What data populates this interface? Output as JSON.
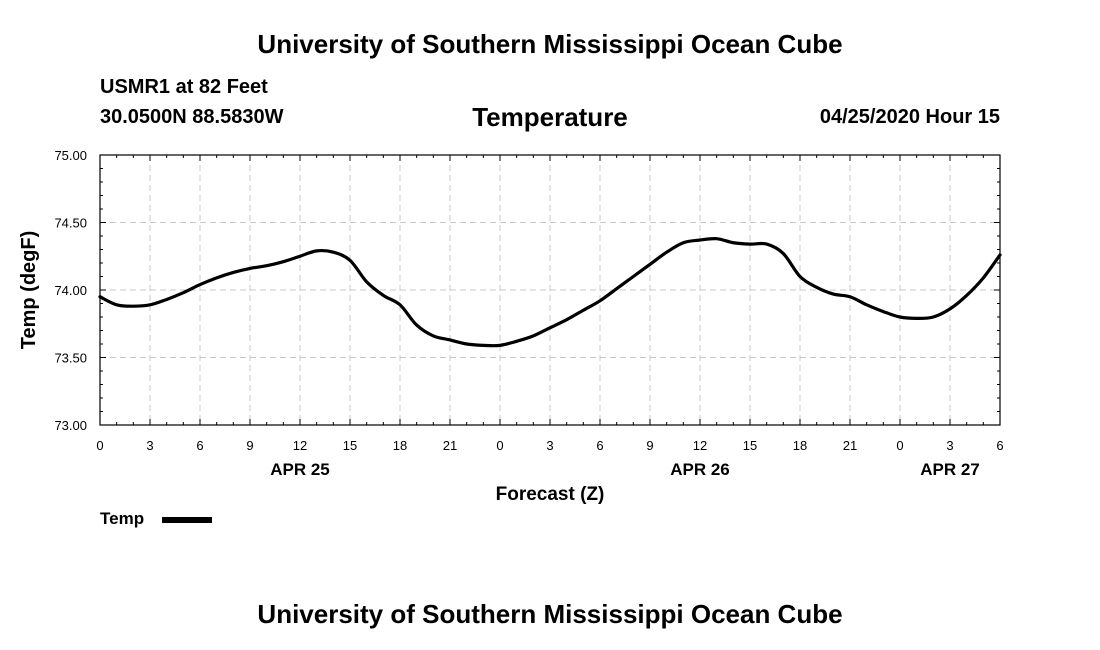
{
  "header": {
    "top_title": "University of Southern Mississippi Ocean Cube",
    "station": "USMR1 at 82 Feet",
    "coords": "30.0500N 88.5830W",
    "valid_time": "04/25/2020 Hour 15"
  },
  "footer": {
    "bottom_title": "University of Southern Mississippi Ocean Cube"
  },
  "legend": {
    "label": "Temp",
    "color": "#000000"
  },
  "chart_data": {
    "type": "line",
    "title": "Temperature",
    "xlabel": "Forecast (Z)",
    "ylabel": "Temp (degF)",
    "xlim": [
      0,
      54
    ],
    "ylim": [
      73.0,
      75.0
    ],
    "grid": true,
    "yticks": [
      73.0,
      73.5,
      74.0,
      74.5,
      75.0
    ],
    "ytick_labels": [
      "73.00",
      "73.50",
      "74.00",
      "74.50",
      "75.00"
    ],
    "xticks": [
      0,
      3,
      6,
      9,
      12,
      15,
      18,
      21,
      24,
      27,
      30,
      33,
      36,
      39,
      42,
      45,
      48,
      51,
      54
    ],
    "xtick_labels": [
      "0",
      "3",
      "6",
      "9",
      "12",
      "15",
      "18",
      "21",
      "0",
      "3",
      "6",
      "9",
      "12",
      "15",
      "18",
      "21",
      "0",
      "3",
      "6"
    ],
    "date_labels": [
      {
        "x": 12,
        "label": "APR 25"
      },
      {
        "x": 36,
        "label": "APR 26"
      },
      {
        "x": 51,
        "label": "APR 27"
      }
    ],
    "series": [
      {
        "name": "Temp",
        "color": "#000000",
        "x": [
          0,
          1,
          2,
          3,
          4,
          5,
          6,
          7,
          8,
          9,
          10,
          11,
          12,
          13,
          14,
          15,
          16,
          17,
          18,
          19,
          20,
          21,
          22,
          23,
          24,
          25,
          26,
          27,
          28,
          29,
          30,
          31,
          32,
          33,
          34,
          35,
          36,
          37,
          38,
          39,
          40,
          41,
          42,
          43,
          44,
          45,
          46,
          47,
          48,
          49,
          50,
          51,
          52,
          53,
          54
        ],
        "values": [
          73.95,
          73.89,
          73.88,
          73.89,
          73.93,
          73.98,
          74.04,
          74.09,
          74.13,
          74.16,
          74.18,
          74.21,
          74.25,
          74.29,
          74.28,
          74.22,
          74.06,
          73.96,
          73.89,
          73.74,
          73.66,
          73.63,
          73.6,
          73.59,
          73.59,
          73.62,
          73.66,
          73.72,
          73.78,
          73.85,
          73.92,
          74.01,
          74.1,
          74.19,
          74.28,
          74.35,
          74.37,
          74.38,
          74.35,
          74.34,
          74.34,
          74.27,
          74.1,
          74.02,
          73.97,
          73.95,
          73.89,
          73.84,
          73.8,
          73.79,
          73.8,
          73.86,
          73.96,
          74.09,
          74.26
        ]
      }
    ]
  }
}
